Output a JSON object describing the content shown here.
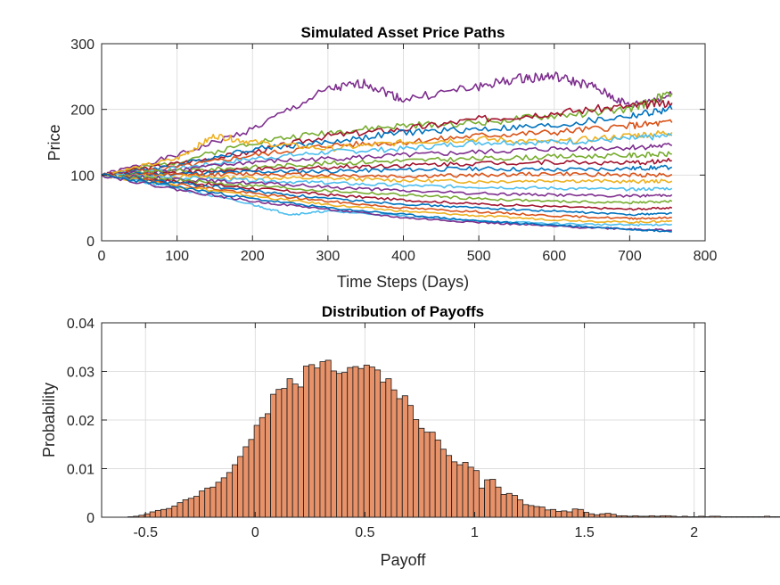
{
  "chart_data": [
    {
      "type": "line",
      "title": "Simulated Asset Price Paths",
      "xlabel": "Time Steps (Days)",
      "ylabel": "Price",
      "xlim": [
        0,
        800
      ],
      "ylim": [
        0,
        300
      ],
      "xticks": [
        0,
        100,
        200,
        300,
        400,
        500,
        600,
        700,
        800
      ],
      "yticks": [
        0,
        100,
        200,
        300
      ],
      "xtick_labels": [
        "0",
        "100",
        "200",
        "300",
        "400",
        "500",
        "600",
        "700",
        "800"
      ],
      "ytick_labels": [
        "0",
        "100",
        "200",
        "300"
      ],
      "grid": true,
      "series": [
        {
          "x": [
            0,
            100,
            200,
            300,
            350,
            400,
            500,
            560,
            600,
            650,
            700,
            756
          ],
          "y": [
            100,
            130,
            170,
            230,
            240,
            215,
            235,
            248,
            250,
            235,
            205,
            222
          ],
          "color": "#7e2f8e"
        },
        {
          "x": [
            0,
            100,
            200,
            300,
            400,
            500,
            600,
            700,
            756
          ],
          "y": [
            100,
            120,
            150,
            165,
            175,
            180,
            190,
            200,
            225
          ],
          "color": "#77ac30"
        },
        {
          "x": [
            0,
            100,
            200,
            300,
            400,
            500,
            600,
            700,
            756
          ],
          "y": [
            100,
            118,
            135,
            160,
            170,
            185,
            195,
            205,
            210
          ],
          "color": "#a2142f"
        },
        {
          "x": [
            0,
            100,
            200,
            300,
            400,
            500,
            600,
            700,
            756
          ],
          "y": [
            100,
            115,
            140,
            150,
            165,
            170,
            175,
            190,
            200
          ],
          "color": "#0072bd"
        },
        {
          "x": [
            0,
            100,
            200,
            300,
            400,
            500,
            600,
            700,
            756
          ],
          "y": [
            100,
            112,
            130,
            145,
            150,
            160,
            165,
            175,
            180
          ],
          "color": "#d95319"
        },
        {
          "x": [
            0,
            100,
            150,
            200,
            300,
            400,
            500,
            600,
            700,
            756
          ],
          "y": [
            100,
            125,
            160,
            150,
            140,
            150,
            155,
            150,
            160,
            165
          ],
          "color": "#edb120"
        },
        {
          "x": [
            0,
            100,
            200,
            300,
            400,
            500,
            600,
            700,
            756
          ],
          "y": [
            100,
            110,
            125,
            135,
            140,
            150,
            150,
            155,
            160
          ],
          "color": "#4dbeee"
        },
        {
          "x": [
            0,
            100,
            200,
            300,
            400,
            500,
            600,
            700,
            756
          ],
          "y": [
            100,
            108,
            120,
            125,
            130,
            135,
            140,
            142,
            145
          ],
          "color": "#7e2f8e"
        },
        {
          "x": [
            0,
            100,
            200,
            300,
            400,
            500,
            600,
            700,
            756
          ],
          "y": [
            100,
            106,
            112,
            118,
            122,
            125,
            128,
            130,
            132
          ],
          "color": "#77ac30"
        },
        {
          "x": [
            0,
            100,
            200,
            300,
            400,
            500,
            600,
            700,
            756
          ],
          "y": [
            100,
            104,
            108,
            112,
            115,
            118,
            120,
            118,
            122
          ],
          "color": "#a2142f"
        },
        {
          "x": [
            0,
            100,
            200,
            300,
            400,
            500,
            600,
            700,
            756
          ],
          "y": [
            100,
            102,
            105,
            106,
            108,
            110,
            108,
            110,
            112
          ],
          "color": "#0072bd"
        },
        {
          "x": [
            0,
            100,
            200,
            300,
            400,
            500,
            600,
            700,
            756
          ],
          "y": [
            100,
            100,
            102,
            100,
            98,
            100,
            102,
            100,
            101
          ],
          "color": "#d95319"
        },
        {
          "x": [
            0,
            100,
            200,
            300,
            400,
            500,
            600,
            700,
            756
          ],
          "y": [
            100,
            98,
            96,
            95,
            92,
            90,
            92,
            90,
            91
          ],
          "color": "#edb120"
        },
        {
          "x": [
            0,
            100,
            200,
            300,
            400,
            500,
            600,
            700,
            756
          ],
          "y": [
            100,
            96,
            92,
            88,
            84,
            82,
            80,
            78,
            80
          ],
          "color": "#4dbeee"
        },
        {
          "x": [
            0,
            100,
            200,
            300,
            400,
            500,
            600,
            700,
            756
          ],
          "y": [
            100,
            94,
            88,
            82,
            76,
            72,
            70,
            68,
            70
          ],
          "color": "#7e2f8e"
        },
        {
          "x": [
            0,
            100,
            200,
            300,
            400,
            500,
            600,
            700,
            756
          ],
          "y": [
            100,
            92,
            84,
            76,
            70,
            64,
            60,
            58,
            60
          ],
          "color": "#77ac30"
        },
        {
          "x": [
            0,
            100,
            200,
            300,
            400,
            500,
            600,
            700,
            756
          ],
          "y": [
            100,
            90,
            80,
            70,
            62,
            56,
            52,
            48,
            50
          ],
          "color": "#a2142f"
        },
        {
          "x": [
            0,
            100,
            200,
            300,
            400,
            500,
            600,
            700,
            756
          ],
          "y": [
            100,
            88,
            76,
            64,
            56,
            50,
            45,
            40,
            42
          ],
          "color": "#0072bd"
        },
        {
          "x": [
            0,
            100,
            200,
            300,
            400,
            500,
            600,
            700,
            756
          ],
          "y": [
            100,
            86,
            72,
            60,
            50,
            44,
            38,
            34,
            35
          ],
          "color": "#d95319"
        },
        {
          "x": [
            0,
            100,
            200,
            300,
            400,
            500,
            600,
            700,
            756
          ],
          "y": [
            100,
            84,
            68,
            55,
            45,
            38,
            32,
            28,
            30
          ],
          "color": "#edb120"
        },
        {
          "x": [
            0,
            100,
            200,
            250,
            300,
            400,
            500,
            600,
            700,
            756
          ],
          "y": [
            100,
            80,
            55,
            40,
            45,
            38,
            30,
            26,
            24,
            25
          ],
          "color": "#4dbeee"
        },
        {
          "x": [
            0,
            100,
            200,
            300,
            400,
            500,
            600,
            700,
            756
          ],
          "y": [
            100,
            78,
            60,
            48,
            35,
            28,
            22,
            18,
            16
          ],
          "color": "#7e2f8e"
        },
        {
          "x": [
            0,
            100,
            200,
            300,
            400,
            500,
            600,
            700,
            756
          ],
          "y": [
            100,
            82,
            64,
            50,
            40,
            30,
            24,
            18,
            14
          ],
          "color": "#0072bd"
        }
      ]
    },
    {
      "type": "bar",
      "title": "Distribution of Payoffs",
      "xlabel": "Payoff",
      "ylabel": "Probability",
      "xlim": [
        -0.7,
        2.05
      ],
      "ylim": [
        0,
        0.04
      ],
      "xticks": [
        -0.5,
        0,
        0.5,
        1,
        1.5,
        2
      ],
      "yticks": [
        0,
        0.01,
        0.02,
        0.03,
        0.04
      ],
      "xtick_labels": [
        "-0.5",
        "0",
        "0.5",
        "1",
        "1.5",
        "2"
      ],
      "ytick_labels": [
        "0",
        "0.01",
        "0.02",
        "0.03",
        "0.04"
      ],
      "grid": true,
      "bin_start": -0.58,
      "bin_width": 0.025,
      "values": [
        0.0001,
        0.0002,
        0.0004,
        0.0007,
        0.0011,
        0.0014,
        0.0016,
        0.0018,
        0.0023,
        0.003,
        0.0036,
        0.0039,
        0.0043,
        0.0054,
        0.006,
        0.0062,
        0.0072,
        0.0081,
        0.0092,
        0.0108,
        0.0125,
        0.0145,
        0.016,
        0.0189,
        0.0205,
        0.0213,
        0.0253,
        0.0263,
        0.0265,
        0.0285,
        0.0274,
        0.0268,
        0.0311,
        0.0314,
        0.0307,
        0.032,
        0.0323,
        0.0301,
        0.0296,
        0.0298,
        0.0308,
        0.031,
        0.0306,
        0.0313,
        0.0309,
        0.0303,
        0.0278,
        0.0285,
        0.0262,
        0.0244,
        0.025,
        0.023,
        0.0201,
        0.0183,
        0.0175,
        0.0175,
        0.0159,
        0.014,
        0.0127,
        0.0114,
        0.0108,
        0.0113,
        0.0103,
        0.0096,
        0.006,
        0.0077,
        0.0078,
        0.0062,
        0.0047,
        0.0049,
        0.0045,
        0.0036,
        0.0026,
        0.0024,
        0.0022,
        0.0021,
        0.0015,
        0.0016,
        0.0012,
        0.0013,
        0.0011,
        0.0017,
        0.0016,
        0.001,
        0.0007,
        0.0005,
        0.0007,
        0.0008,
        0.0006,
        0.0003,
        0.0003,
        0.0002,
        0.0003,
        0.0002,
        0.0002,
        0.0003,
        0.0002,
        0.0003,
        0.0003,
        0.0002,
        0.0001,
        0.0002,
        0.0001,
        0.0001,
        0.0002,
        0.0001,
        0.0002,
        0.0002,
        0.0001,
        0.0001,
        0.0001,
        0.0001,
        0.0001,
        0.0001,
        0.0001,
        0.0001,
        0.0002,
        0.0001,
        0.0001,
        0.0001,
        0.0001
      ],
      "color": "#e8926a"
    }
  ]
}
